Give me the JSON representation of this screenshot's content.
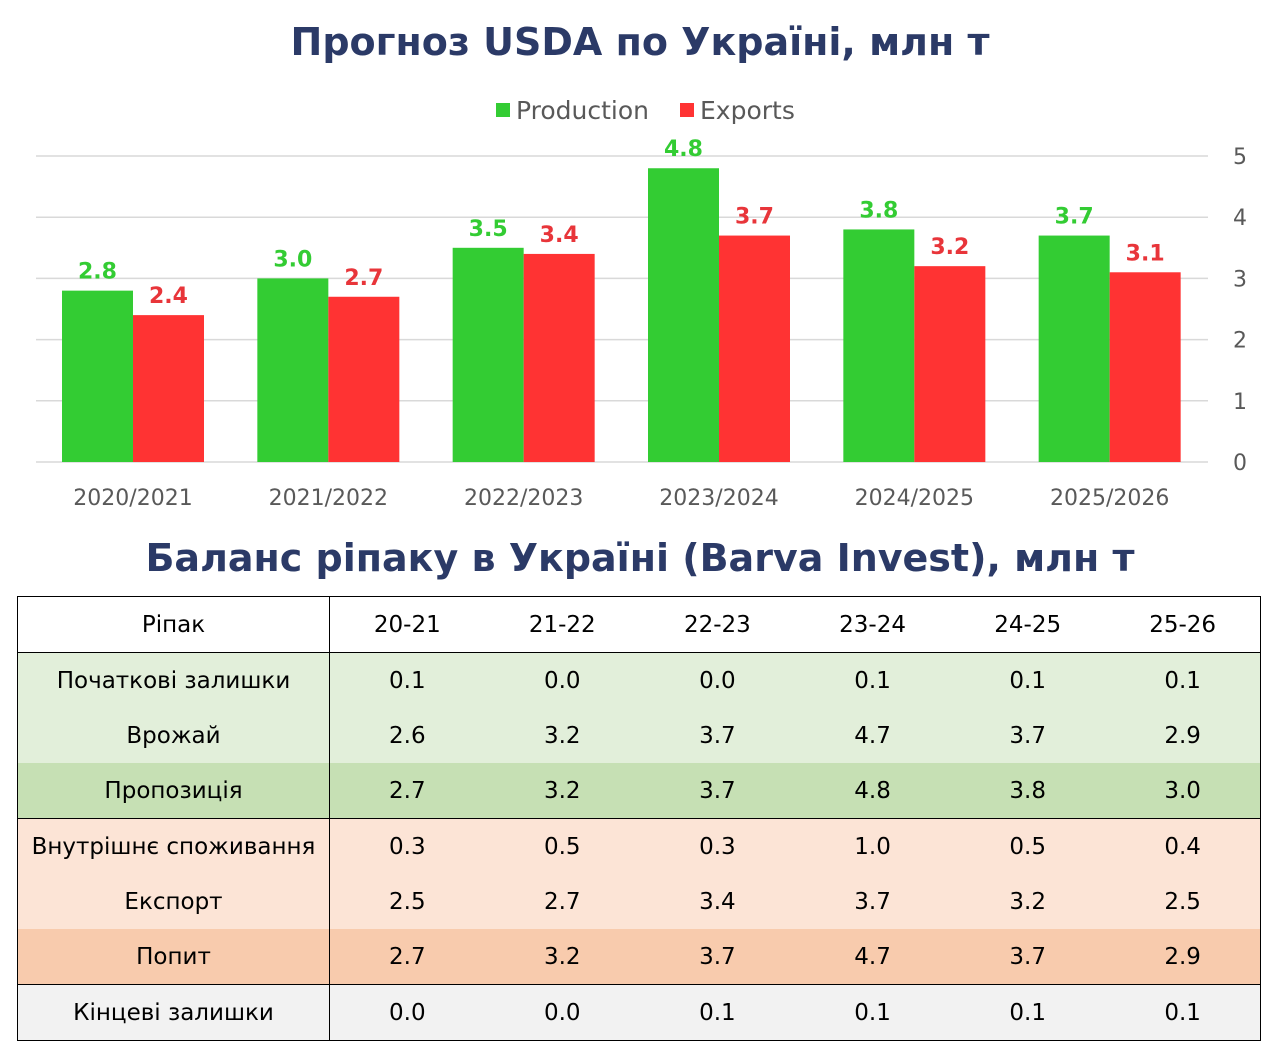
{
  "chart_title": "Прогноз USDA по Україні, млн т",
  "table_title": "Баланс ріпаку в Україні (Barva Invest), млн т",
  "chart_data": {
    "type": "bar",
    "categories": [
      "2020/2021",
      "2021/2022",
      "2022/2023",
      "2023/2024",
      "2024/2025",
      "2025/2026"
    ],
    "series": [
      {
        "name": "Production",
        "values": [
          2.8,
          3.0,
          3.5,
          4.8,
          3.8,
          3.7
        ],
        "labels": [
          "2.8",
          "3.0",
          "3.5",
          "4.8",
          "3.8",
          "3.7"
        ],
        "color": "#33cc33",
        "label_color": "#33cc33"
      },
      {
        "name": "Exports",
        "values": [
          2.4,
          2.7,
          3.4,
          3.7,
          3.2,
          3.1
        ],
        "labels": [
          "2.4",
          "2.7",
          "3.4",
          "3.7",
          "3.2",
          "3.1"
        ],
        "color": "#ff3333",
        "label_color": "#e8353a"
      }
    ],
    "ylim": [
      0,
      5
    ],
    "yticks": [
      "0",
      "1",
      "2",
      "3",
      "4",
      "5"
    ],
    "y_axis_side": "right",
    "legend_position": "top-center",
    "grid": true,
    "title_color": "#2b3a67"
  },
  "table": {
    "header": {
      "label": "Ріпак",
      "years": [
        "20-21",
        "21-22",
        "22-23",
        "23-24",
        "24-25",
        "25-26"
      ]
    },
    "rows": [
      {
        "label": "Початкові залишки",
        "values": [
          "0.1",
          "0.0",
          "0.0",
          "0.1",
          "0.1",
          "0.1"
        ],
        "section": "light-green",
        "group_start": true
      },
      {
        "label": "Врожай",
        "values": [
          "2.6",
          "3.2",
          "3.7",
          "4.7",
          "3.7",
          "2.9"
        ],
        "section": "light-green",
        "group_start": false
      },
      {
        "label": "Пропозиція",
        "values": [
          "2.7",
          "3.2",
          "3.7",
          "4.8",
          "3.8",
          "3.0"
        ],
        "section": "green",
        "group_start": false
      },
      {
        "label": "Внутрішнє споживання",
        "values": [
          "0.3",
          "0.5",
          "0.3",
          "1.0",
          "0.5",
          "0.4"
        ],
        "section": "light-orange",
        "group_start": true
      },
      {
        "label": "Експорт",
        "values": [
          "2.5",
          "2.7",
          "3.4",
          "3.7",
          "3.2",
          "2.5"
        ],
        "section": "light-orange",
        "group_start": false
      },
      {
        "label": "Попит",
        "values": [
          "2.7",
          "3.2",
          "3.7",
          "4.7",
          "3.7",
          "2.9"
        ],
        "section": "orange",
        "group_start": false
      },
      {
        "label": "Кінцеві залишки",
        "values": [
          "0.0",
          "0.0",
          "0.1",
          "0.1",
          "0.1",
          "0.1"
        ],
        "section": "grey",
        "group_start": true
      }
    ],
    "section_colors": {
      "light-green": "#e2efda",
      "green": "#c6e0b4",
      "light-orange": "#fce4d6",
      "orange": "#f8cbad",
      "grey": "#f2f2f2"
    }
  }
}
